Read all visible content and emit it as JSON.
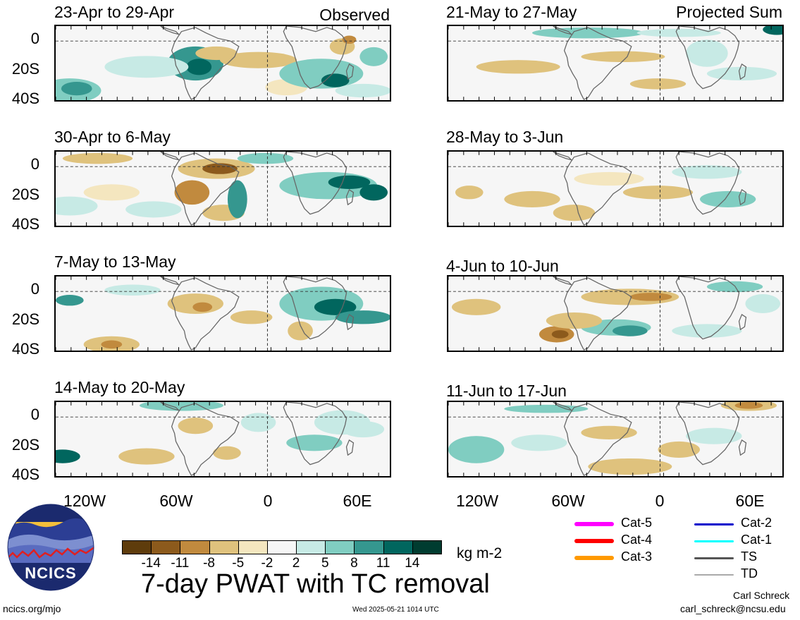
{
  "panels": {
    "left": [
      {
        "title": "23-Apr to 29-Apr",
        "tag": "Observed"
      },
      {
        "title": "30-Apr to 6-May",
        "tag": ""
      },
      {
        "title": "7-May to 13-May",
        "tag": ""
      },
      {
        "title": "14-May to 20-May",
        "tag": ""
      }
    ],
    "right": [
      {
        "title": "21-May to 27-May",
        "tag": "Projected Sum"
      },
      {
        "title": "28-May to 3-Jun",
        "tag": ""
      },
      {
        "title": "4-Jun to 10-Jun",
        "tag": ""
      },
      {
        "title": "11-Jun to 17-Jun",
        "tag": ""
      }
    ]
  },
  "lat_labels": [
    "0",
    "20S",
    "40S"
  ],
  "lon_labels": [
    "120W",
    "60W",
    "0",
    "60E"
  ],
  "colorbar": {
    "colors": [
      "#5e3c0c",
      "#8c5a1c",
      "#c18a3e",
      "#dfc27d",
      "#f4e6bf",
      "#f6f6f6",
      "#c7eae5",
      "#80cdc1",
      "#35978f",
      "#01665e",
      "#003c30"
    ],
    "ticks": [
      "-14",
      "-11",
      "-8",
      "-5",
      "-2",
      "2",
      "5",
      "8",
      "11",
      "14"
    ],
    "units": "kg m-2"
  },
  "title": "7-day PWAT with TC removal",
  "legend": [
    {
      "label": "Cat-5",
      "color": "#ff00ff",
      "weight": "thick"
    },
    {
      "label": "Cat-4",
      "color": "#ff0000",
      "weight": "thick"
    },
    {
      "label": "Cat-3",
      "color": "#ff9900",
      "weight": "thick"
    },
    {
      "label": "Cat-2",
      "color": "#0000cc",
      "weight": "medium"
    },
    {
      "label": "Cat-1",
      "color": "#00ffff",
      "weight": "medium"
    },
    {
      "label": "TS",
      "color": "#555555",
      "weight": "medium"
    },
    {
      "label": "TD",
      "color": "#aaaaaa",
      "weight": "thin"
    }
  ],
  "logo": {
    "text": "NCICS"
  },
  "footer": {
    "website": "ncics.org/mjo",
    "timestamp": "Wed 2025-05-21 1014 UTC",
    "author": "Carl Schreck",
    "email": "carl_schreck@ncsu.edu"
  }
}
